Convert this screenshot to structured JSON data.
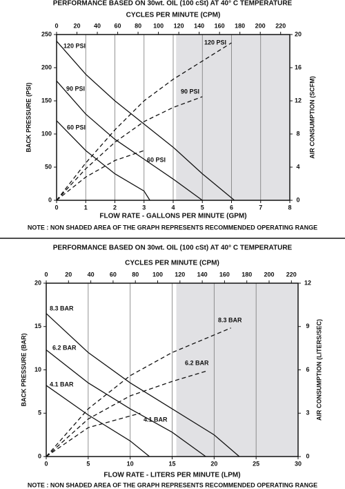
{
  "chart_data": [
    {
      "type": "line",
      "title": "PERFORMANCE  BASED ON 30wt. OIL (100 cSt) AT 40° C TEMPERATURE",
      "x2label": "CYCLES PER MINUTE (CPM)",
      "xlabel": "FLOW RATE - GALLONS PER MINUTE (GPM)",
      "ylabel": "BACK PRESSURE (PSI)",
      "y2label": "AIR CONSUMPTION (SCFM)",
      "note": "NOTE : NON SHADED AREA OF THE GRAPH REPRESENTS RECOMMENDED OPERATING RANGE",
      "xlim": [
        0,
        8
      ],
      "xticks": [
        0,
        1,
        2,
        3,
        4,
        5,
        6,
        7,
        8
      ],
      "x2lim": [
        0,
        229
      ],
      "x2ticks": [
        0,
        20,
        40,
        60,
        80,
        100,
        120,
        140,
        160,
        180,
        200,
        220
      ],
      "ylim": [
        0,
        250
      ],
      "yticks": [
        0,
        50,
        100,
        150,
        200,
        250
      ],
      "y2lim": [
        0,
        20
      ],
      "y2ticks": [
        0,
        4,
        8,
        12,
        16,
        20
      ],
      "grid": "x",
      "shaded_region": {
        "from": 4.1,
        "to": 8,
        "color": "#e1e1e4"
      },
      "series": [
        {
          "name": "120 PSI",
          "color": "#111111",
          "style": "solid",
          "x": [
            0,
            1,
            2,
            3,
            4,
            5,
            6.1
          ],
          "values": [
            240,
            190,
            150,
            115,
            80,
            40,
            0
          ]
        },
        {
          "name": "90 PSI",
          "color": "#111111",
          "style": "solid",
          "x": [
            0,
            1,
            2,
            3,
            4,
            5
          ],
          "values": [
            180,
            130,
            92,
            62,
            32,
            0
          ]
        },
        {
          "name": "60 PSI",
          "color": "#111111",
          "style": "solid",
          "x": [
            0,
            1,
            2,
            3,
            3.2
          ],
          "values": [
            120,
            75,
            40,
            14,
            0
          ]
        },
        {
          "name": "120 PSI",
          "color": "#111111",
          "style": "dashed",
          "axis": "y2",
          "x": [
            0,
            1,
            2,
            3,
            4,
            5,
            6
          ],
          "values": [
            0,
            4.5,
            8.5,
            12,
            14.6,
            16.8,
            19
          ]
        },
        {
          "name": "90 PSI",
          "color": "#111111",
          "style": "dashed",
          "axis": "y2",
          "x": [
            0,
            1,
            2,
            3,
            4,
            5
          ],
          "values": [
            0,
            3.8,
            7,
            9.5,
            11.2,
            12.5
          ]
        },
        {
          "name": "60 PSI",
          "color": "#111111",
          "style": "dashed",
          "axis": "y2",
          "x": [
            0,
            1,
            2,
            3
          ],
          "values": [
            0,
            2.8,
            4.8,
            6
          ]
        }
      ]
    },
    {
      "type": "line",
      "title": "PERFORMANCE  BASED ON 30wt. OIL (100 cSt) AT 40° C TEMPERATURE",
      "x2label": "CYCLES PER MINUTE (CPM)",
      "xlabel": "FLOW RATE - LITERS PER MINUTE (LPM)",
      "ylabel": "BACK PRESSURE (BAR)",
      "y2label": "AIR CONSUMPTION (LITERS/SEC)",
      "note": "NOTE : NON SHADED AREA OF THE GRAPH REPRESENTS RECOMMENDED OPERATING RANGE",
      "xlim": [
        0,
        30
      ],
      "xticks": [
        0,
        5,
        10,
        15,
        20,
        25,
        30
      ],
      "x2lim": [
        0,
        226
      ],
      "x2ticks": [
        0,
        20,
        40,
        60,
        80,
        100,
        120,
        140,
        160,
        180,
        200,
        220
      ],
      "ylim": [
        0,
        20
      ],
      "yticks": [
        0,
        5,
        10,
        15,
        20
      ],
      "y2lim": [
        0,
        12
      ],
      "y2ticks": [
        0,
        3,
        6,
        9,
        12
      ],
      "grid": "x",
      "shaded_region": {
        "from": 15.5,
        "to": 30,
        "color": "#e1e1e4"
      },
      "series": [
        {
          "name": "8.3 BAR",
          "color": "#111111",
          "style": "solid",
          "x": [
            0,
            5,
            10,
            15,
            20,
            23
          ],
          "values": [
            16.5,
            12,
            8.5,
            5.5,
            2.5,
            0
          ]
        },
        {
          "name": "6.2 BAR",
          "color": "#111111",
          "style": "solid",
          "x": [
            0,
            5,
            10,
            15,
            19
          ],
          "values": [
            12.3,
            8.5,
            5.5,
            2.8,
            0
          ]
        },
        {
          "name": "4.1 BAR",
          "color": "#111111",
          "style": "solid",
          "x": [
            0,
            5,
            10,
            12.3
          ],
          "values": [
            8.2,
            4.8,
            1.8,
            0
          ]
        },
        {
          "name": "8.3 BAR",
          "color": "#111111",
          "style": "dashed",
          "axis": "y2",
          "x": [
            0,
            5,
            10,
            15,
            22
          ],
          "values": [
            0,
            3.3,
            5.6,
            7.2,
            8.9
          ]
        },
        {
          "name": "6.2 BAR",
          "color": "#111111",
          "style": "dashed",
          "axis": "y2",
          "x": [
            0,
            5,
            10,
            15,
            19
          ],
          "values": [
            0,
            2.6,
            4.2,
            5.2,
            5.9
          ]
        },
        {
          "name": "4.1 BAR",
          "color": "#111111",
          "style": "dashed",
          "axis": "y2",
          "x": [
            0,
            5,
            11.2
          ],
          "values": [
            0,
            2,
            3
          ]
        }
      ]
    }
  ]
}
